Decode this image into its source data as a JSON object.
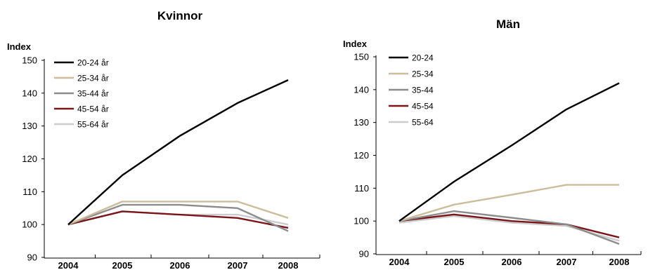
{
  "chart_data": [
    {
      "type": "line",
      "title": "Kvinnor",
      "ylabel": "Index",
      "xlabel": "",
      "ylim": [
        90,
        150
      ],
      "yticks": [
        90,
        100,
        110,
        120,
        130,
        140,
        150
      ],
      "categories": [
        "2004",
        "2005",
        "2006",
        "2007",
        "2008"
      ],
      "legend_position": "top-left",
      "grid": false,
      "series": [
        {
          "name": "20-24 år",
          "color": "#000000",
          "values": [
            100,
            115,
            127,
            137,
            144
          ]
        },
        {
          "name": "25-34 år",
          "color": "#c9bd9a",
          "values": [
            100,
            107,
            107,
            107,
            102
          ]
        },
        {
          "name": "35-44 år",
          "color": "#8c8c8c",
          "values": [
            100,
            106,
            106,
            105,
            98
          ]
        },
        {
          "name": "45-54 år",
          "color": "#7b1518",
          "values": [
            100,
            104,
            103,
            102,
            99
          ]
        },
        {
          "name": "55-64 år",
          "color": "#cccccc",
          "values": [
            100,
            104,
            103,
            103,
            100
          ]
        }
      ]
    },
    {
      "type": "line",
      "title": "Män",
      "ylabel": "Index",
      "xlabel": "",
      "ylim": [
        90,
        150
      ],
      "yticks": [
        90,
        100,
        110,
        120,
        130,
        140,
        150
      ],
      "categories": [
        "2004",
        "2005",
        "2006",
        "2007",
        "2008"
      ],
      "legend_position": "top-left",
      "grid": false,
      "series": [
        {
          "name": "20-24",
          "color": "#000000",
          "values": [
            100,
            112,
            123,
            134,
            142
          ]
        },
        {
          "name": "25-34",
          "color": "#c9bd9a",
          "values": [
            100,
            105,
            108,
            111,
            111
          ]
        },
        {
          "name": "35-44",
          "color": "#8c8c8c",
          "values": [
            100,
            103,
            101,
            99,
            93
          ]
        },
        {
          "name": "45-54",
          "color": "#7b1518",
          "values": [
            100,
            102,
            100,
            99,
            95
          ]
        },
        {
          "name": "55-64",
          "color": "#cccccc",
          "values": [
            99.5,
            101.5,
            99.5,
            98.5,
            94
          ]
        }
      ]
    }
  ]
}
